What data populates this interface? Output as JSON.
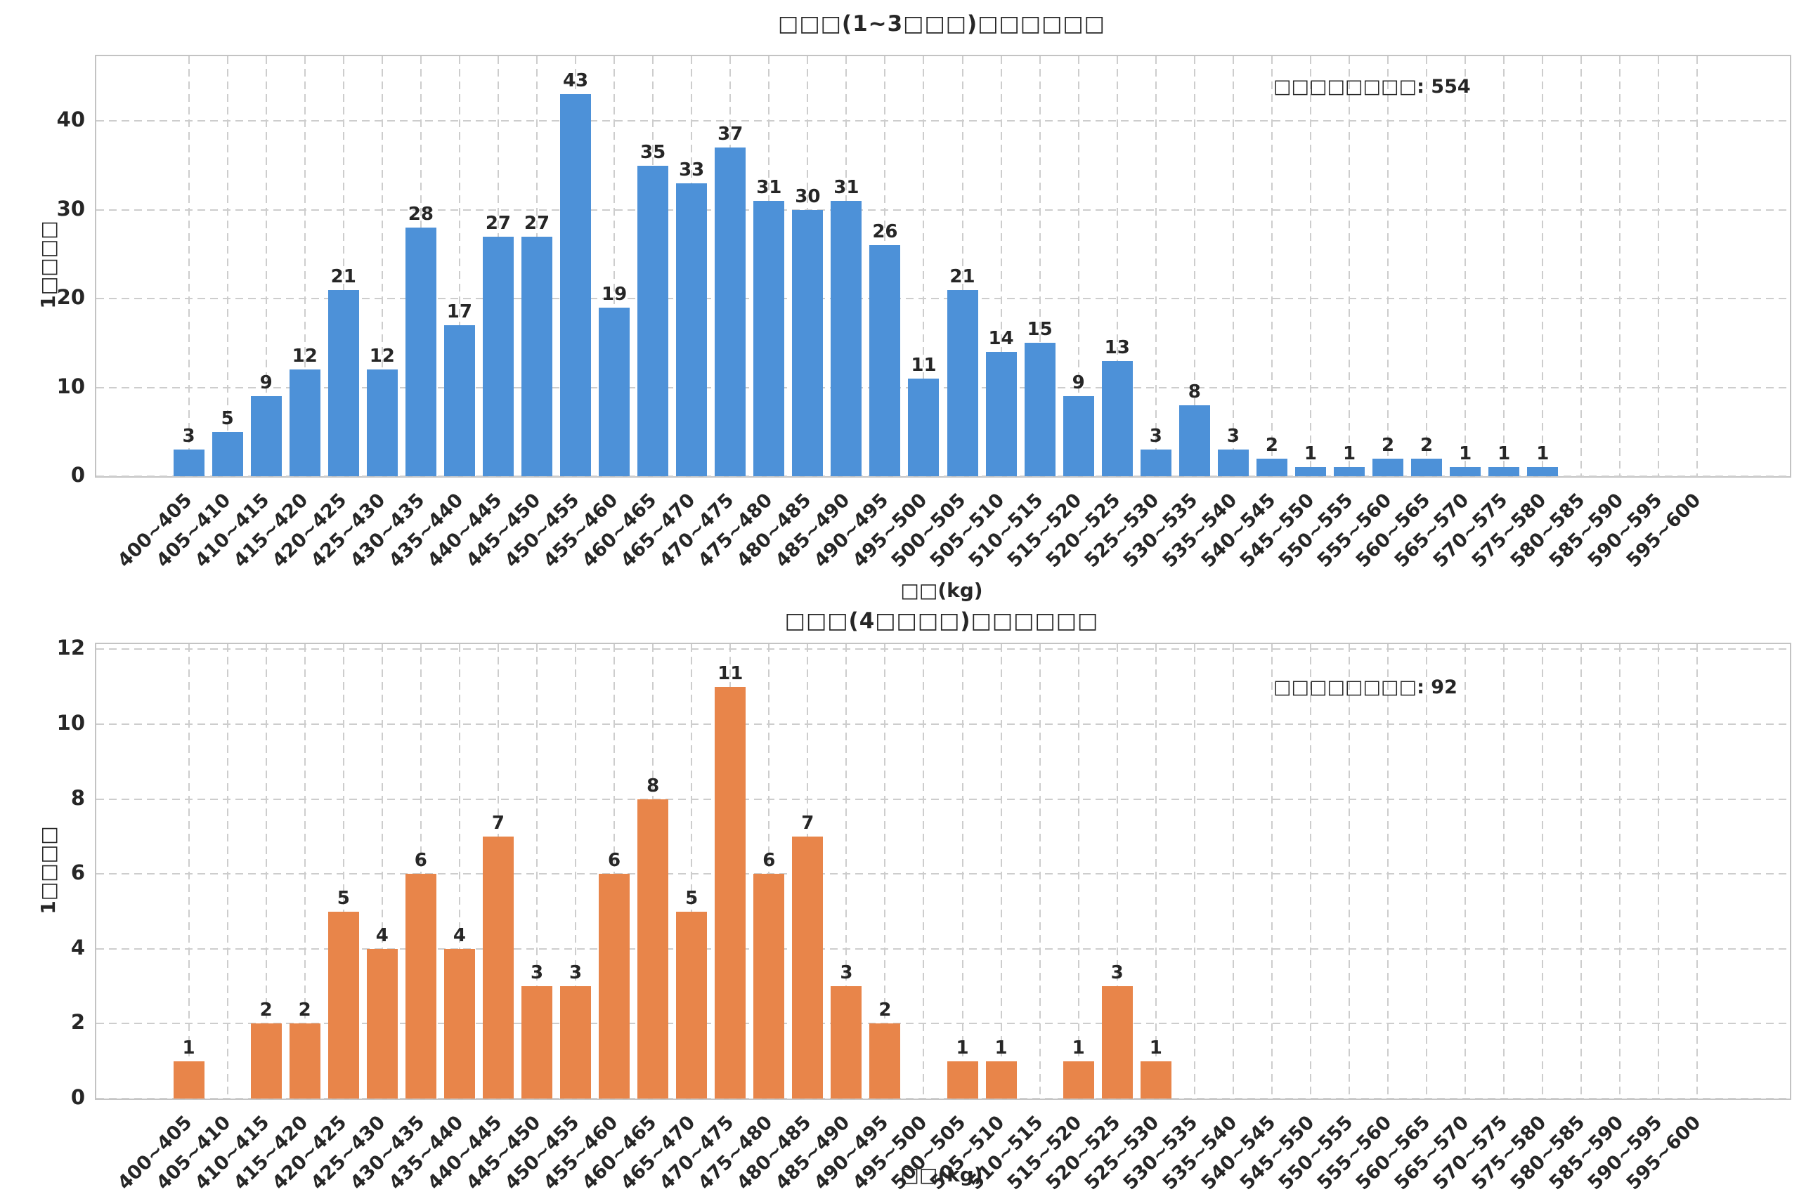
{
  "page": {
    "background": "#ffffff",
    "text_color": "#262626",
    "grid_color": "#cdcdcd"
  },
  "chart_data": [
    {
      "type": "bar",
      "title": "□□□(1~3□□□)□□□□□□",
      "annotation": "□□□□□□□□: 554",
      "total": 554,
      "xlabel": "□□(kg)",
      "ylabel": "1□□□□",
      "bar_color": "#4d91d8",
      "grid": true,
      "legend_position": "none",
      "ylim": [
        0,
        47.3
      ],
      "yticks": [
        0,
        10,
        20,
        30,
        40
      ],
      "categories": [
        "400~405",
        "405~410",
        "410~415",
        "415~420",
        "420~425",
        "425~430",
        "430~435",
        "435~440",
        "440~445",
        "445~450",
        "450~455",
        "455~460",
        "460~465",
        "465~470",
        "470~475",
        "475~480",
        "480~485",
        "485~490",
        "490~495",
        "495~500",
        "500~505",
        "505~510",
        "510~515",
        "515~520",
        "520~525",
        "525~530",
        "530~535",
        "535~540",
        "540~545",
        "545~550",
        "550~555",
        "555~560",
        "560~565",
        "565~570",
        "570~575",
        "575~580",
        "580~585",
        "585~590",
        "590~595",
        "595~600"
      ],
      "values": [
        3,
        5,
        9,
        12,
        21,
        12,
        28,
        17,
        27,
        27,
        43,
        19,
        35,
        33,
        37,
        31,
        30,
        31,
        26,
        11,
        21,
        14,
        15,
        9,
        13,
        3,
        8,
        3,
        2,
        1,
        1,
        2,
        2,
        1,
        1,
        1,
        0,
        0,
        0,
        0
      ]
    },
    {
      "type": "bar",
      "title": "□□□(4□□□□)□□□□□□",
      "annotation": "□□□□□□□□: 92",
      "total": 92,
      "xlabel": "□□(kg)",
      "ylabel": "1□□□□",
      "bar_color": "#e8854a",
      "grid": true,
      "legend_position": "none",
      "ylim": [
        0,
        12.14
      ],
      "yticks": [
        0,
        2,
        4,
        6,
        8,
        10,
        12
      ],
      "categories": [
        "400~405",
        "405~410",
        "410~415",
        "415~420",
        "420~425",
        "425~430",
        "430~435",
        "435~440",
        "440~445",
        "445~450",
        "450~455",
        "455~460",
        "460~465",
        "465~470",
        "470~475",
        "475~480",
        "480~485",
        "485~490",
        "490~495",
        "495~500",
        "500~505",
        "505~510",
        "510~515",
        "515~520",
        "520~525",
        "525~530",
        "530~535",
        "535~540",
        "540~545",
        "545~550",
        "550~555",
        "555~560",
        "560~565",
        "565~570",
        "570~575",
        "575~580",
        "580~585",
        "585~590",
        "590~595",
        "595~600"
      ],
      "values": [
        1,
        0,
        2,
        2,
        5,
        4,
        6,
        4,
        7,
        3,
        3,
        6,
        8,
        5,
        11,
        6,
        7,
        3,
        2,
        0,
        1,
        1,
        0,
        1,
        3,
        1,
        0,
        0,
        0,
        0,
        0,
        0,
        0,
        0,
        0,
        0,
        0,
        0,
        0,
        0
      ]
    }
  ]
}
